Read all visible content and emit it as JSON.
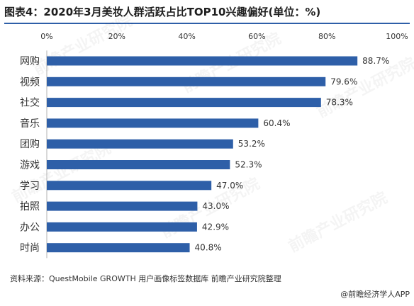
{
  "header": {
    "title": "图表4：2020年3月美妆人群活跃占比TOP10兴趣偏好(单位：%)"
  },
  "footer": {
    "source": "资料来源：QuestMobile GROWTH 用户画像标签数据库 前瞻产业研究院整理",
    "credit": "@前瞻经济学人APP"
  },
  "watermark": {
    "text": "前瞻产业研究院"
  },
  "chart_data": {
    "type": "bar",
    "orientation": "horizontal",
    "categories": [
      "网购",
      "视频",
      "社交",
      "音乐",
      "团购",
      "游戏",
      "学习",
      "拍照",
      "办公",
      "时尚"
    ],
    "values": [
      88.7,
      79.6,
      78.3,
      60.4,
      53.2,
      52.3,
      47.0,
      43.0,
      42.9,
      40.8
    ],
    "value_labels": [
      "88.7%",
      "79.6%",
      "78.3%",
      "60.4%",
      "53.2%",
      "52.3%",
      "47.0%",
      "43.0%",
      "42.9%",
      "40.8%"
    ],
    "xlim": [
      0,
      100
    ],
    "x_ticks": [
      0,
      20,
      40,
      60,
      80,
      100
    ],
    "x_tick_labels": [
      "0%",
      "20%",
      "40%",
      "60%",
      "80%",
      "100%"
    ],
    "axis_position": "top",
    "grid": false,
    "bar_color": "#2e5fa8"
  }
}
